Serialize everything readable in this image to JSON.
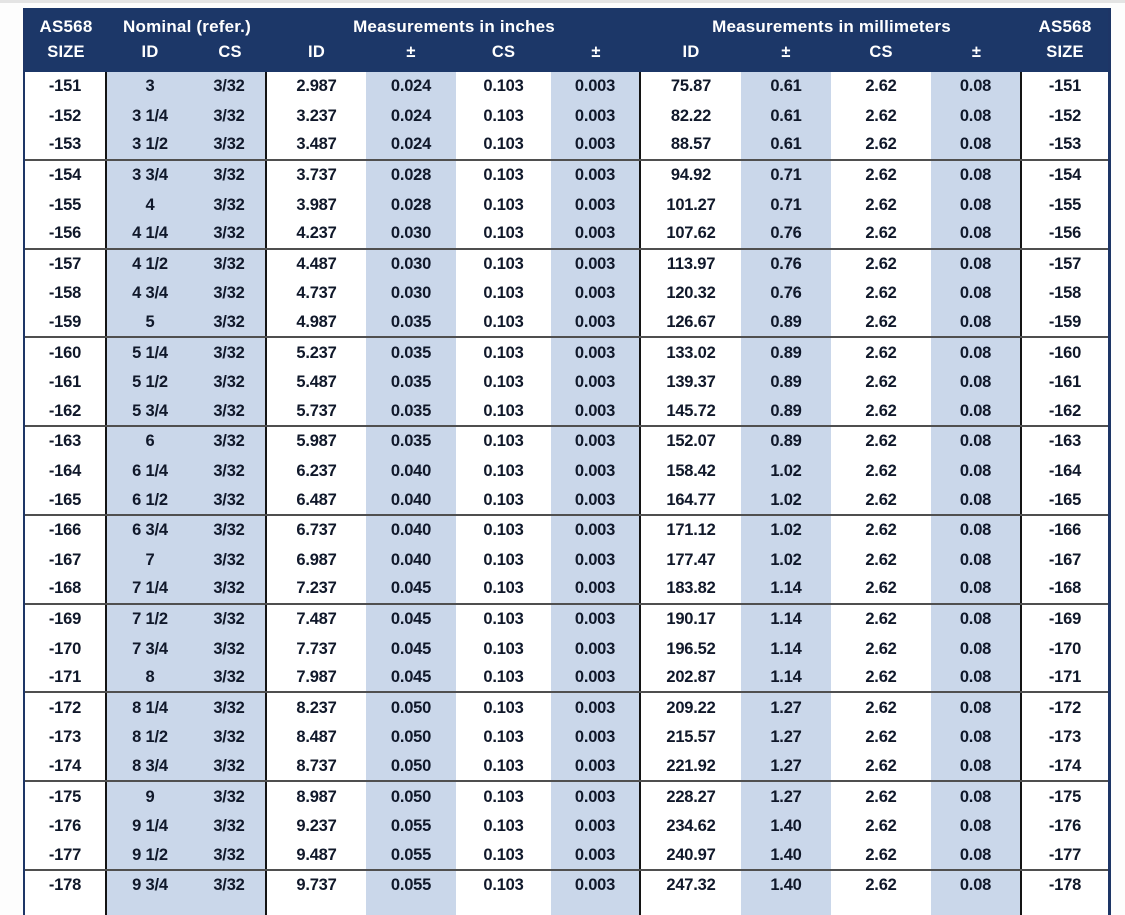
{
  "colors": {
    "header_bg": "#1c3768",
    "header_text": "#ffffff",
    "shade": "#cad7ea",
    "body_text": "#10182a",
    "divider": "#4f4f4f",
    "column_rule": "#141414",
    "outer_border": "#1d3566",
    "page_bg": "#fdfdfd",
    "top_edge": "#e4e4e4"
  },
  "table": {
    "header": {
      "groups": [
        {
          "label": "AS568",
          "span": 1
        },
        {
          "label": "Nominal (refer.)",
          "span": 2
        },
        {
          "label": "Measurements in inches",
          "span": 4
        },
        {
          "label": "Measurements in millimeters",
          "span": 4
        },
        {
          "label": "AS568",
          "span": 1
        }
      ],
      "columns": [
        "SIZE",
        "ID",
        "CS",
        "ID",
        "±",
        "CS",
        "±",
        "ID",
        "±",
        "CS",
        "±",
        "SIZE"
      ]
    },
    "column_keys": [
      "as568-size",
      "nominal-id",
      "nominal-cs",
      "inch-id",
      "inch-id-tol",
      "inch-cs",
      "inch-cs-tol",
      "mm-id",
      "mm-id-tol",
      "mm-cs",
      "mm-cs-tol",
      "as568-size-right"
    ],
    "group_size": 3,
    "rows": [
      [
        "-151",
        "3",
        "3/32",
        "2.987",
        "0.024",
        "0.103",
        "0.003",
        "75.87",
        "0.61",
        "2.62",
        "0.08",
        "-151"
      ],
      [
        "-152",
        "3 1/4",
        "3/32",
        "3.237",
        "0.024",
        "0.103",
        "0.003",
        "82.22",
        "0.61",
        "2.62",
        "0.08",
        "-152"
      ],
      [
        "-153",
        "3 1/2",
        "3/32",
        "3.487",
        "0.024",
        "0.103",
        "0.003",
        "88.57",
        "0.61",
        "2.62",
        "0.08",
        "-153"
      ],
      [
        "-154",
        "3 3/4",
        "3/32",
        "3.737",
        "0.028",
        "0.103",
        "0.003",
        "94.92",
        "0.71",
        "2.62",
        "0.08",
        "-154"
      ],
      [
        "-155",
        "4",
        "3/32",
        "3.987",
        "0.028",
        "0.103",
        "0.003",
        "101.27",
        "0.71",
        "2.62",
        "0.08",
        "-155"
      ],
      [
        "-156",
        "4 1/4",
        "3/32",
        "4.237",
        "0.030",
        "0.103",
        "0.003",
        "107.62",
        "0.76",
        "2.62",
        "0.08",
        "-156"
      ],
      [
        "-157",
        "4 1/2",
        "3/32",
        "4.487",
        "0.030",
        "0.103",
        "0.003",
        "113.97",
        "0.76",
        "2.62",
        "0.08",
        "-157"
      ],
      [
        "-158",
        "4 3/4",
        "3/32",
        "4.737",
        "0.030",
        "0.103",
        "0.003",
        "120.32",
        "0.76",
        "2.62",
        "0.08",
        "-158"
      ],
      [
        "-159",
        "5",
        "3/32",
        "4.987",
        "0.035",
        "0.103",
        "0.003",
        "126.67",
        "0.89",
        "2.62",
        "0.08",
        "-159"
      ],
      [
        "-160",
        "5 1/4",
        "3/32",
        "5.237",
        "0.035",
        "0.103",
        "0.003",
        "133.02",
        "0.89",
        "2.62",
        "0.08",
        "-160"
      ],
      [
        "-161",
        "5 1/2",
        "3/32",
        "5.487",
        "0.035",
        "0.103",
        "0.003",
        "139.37",
        "0.89",
        "2.62",
        "0.08",
        "-161"
      ],
      [
        "-162",
        "5 3/4",
        "3/32",
        "5.737",
        "0.035",
        "0.103",
        "0.003",
        "145.72",
        "0.89",
        "2.62",
        "0.08",
        "-162"
      ],
      [
        "-163",
        "6",
        "3/32",
        "5.987",
        "0.035",
        "0.103",
        "0.003",
        "152.07",
        "0.89",
        "2.62",
        "0.08",
        "-163"
      ],
      [
        "-164",
        "6 1/4",
        "3/32",
        "6.237",
        "0.040",
        "0.103",
        "0.003",
        "158.42",
        "1.02",
        "2.62",
        "0.08",
        "-164"
      ],
      [
        "-165",
        "6 1/2",
        "3/32",
        "6.487",
        "0.040",
        "0.103",
        "0.003",
        "164.77",
        "1.02",
        "2.62",
        "0.08",
        "-165"
      ],
      [
        "-166",
        "6 3/4",
        "3/32",
        "6.737",
        "0.040",
        "0.103",
        "0.003",
        "171.12",
        "1.02",
        "2.62",
        "0.08",
        "-166"
      ],
      [
        "-167",
        "7",
        "3/32",
        "6.987",
        "0.040",
        "0.103",
        "0.003",
        "177.47",
        "1.02",
        "2.62",
        "0.08",
        "-167"
      ],
      [
        "-168",
        "7 1/4",
        "3/32",
        "7.237",
        "0.045",
        "0.103",
        "0.003",
        "183.82",
        "1.14",
        "2.62",
        "0.08",
        "-168"
      ],
      [
        "-169",
        "7 1/2",
        "3/32",
        "7.487",
        "0.045",
        "0.103",
        "0.003",
        "190.17",
        "1.14",
        "2.62",
        "0.08",
        "-169"
      ],
      [
        "-170",
        "7 3/4",
        "3/32",
        "7.737",
        "0.045",
        "0.103",
        "0.003",
        "196.52",
        "1.14",
        "2.62",
        "0.08",
        "-170"
      ],
      [
        "-171",
        "8",
        "3/32",
        "7.987",
        "0.045",
        "0.103",
        "0.003",
        "202.87",
        "1.14",
        "2.62",
        "0.08",
        "-171"
      ],
      [
        "-172",
        "8 1/4",
        "3/32",
        "8.237",
        "0.050",
        "0.103",
        "0.003",
        "209.22",
        "1.27",
        "2.62",
        "0.08",
        "-172"
      ],
      [
        "-173",
        "8 1/2",
        "3/32",
        "8.487",
        "0.050",
        "0.103",
        "0.003",
        "215.57",
        "1.27",
        "2.62",
        "0.08",
        "-173"
      ],
      [
        "-174",
        "8 3/4",
        "3/32",
        "8.737",
        "0.050",
        "0.103",
        "0.003",
        "221.92",
        "1.27",
        "2.62",
        "0.08",
        "-174"
      ],
      [
        "-175",
        "9",
        "3/32",
        "8.987",
        "0.050",
        "0.103",
        "0.003",
        "228.27",
        "1.27",
        "2.62",
        "0.08",
        "-175"
      ],
      [
        "-176",
        "9 1/4",
        "3/32",
        "9.237",
        "0.055",
        "0.103",
        "0.003",
        "234.62",
        "1.40",
        "2.62",
        "0.08",
        "-176"
      ],
      [
        "-177",
        "9 1/2",
        "3/32",
        "9.487",
        "0.055",
        "0.103",
        "0.003",
        "240.97",
        "1.40",
        "2.62",
        "0.08",
        "-177"
      ],
      [
        "-178",
        "9 3/4",
        "3/32",
        "9.737",
        "0.055",
        "0.103",
        "0.003",
        "247.32",
        "1.40",
        "2.62",
        "0.08",
        "-178"
      ]
    ]
  }
}
